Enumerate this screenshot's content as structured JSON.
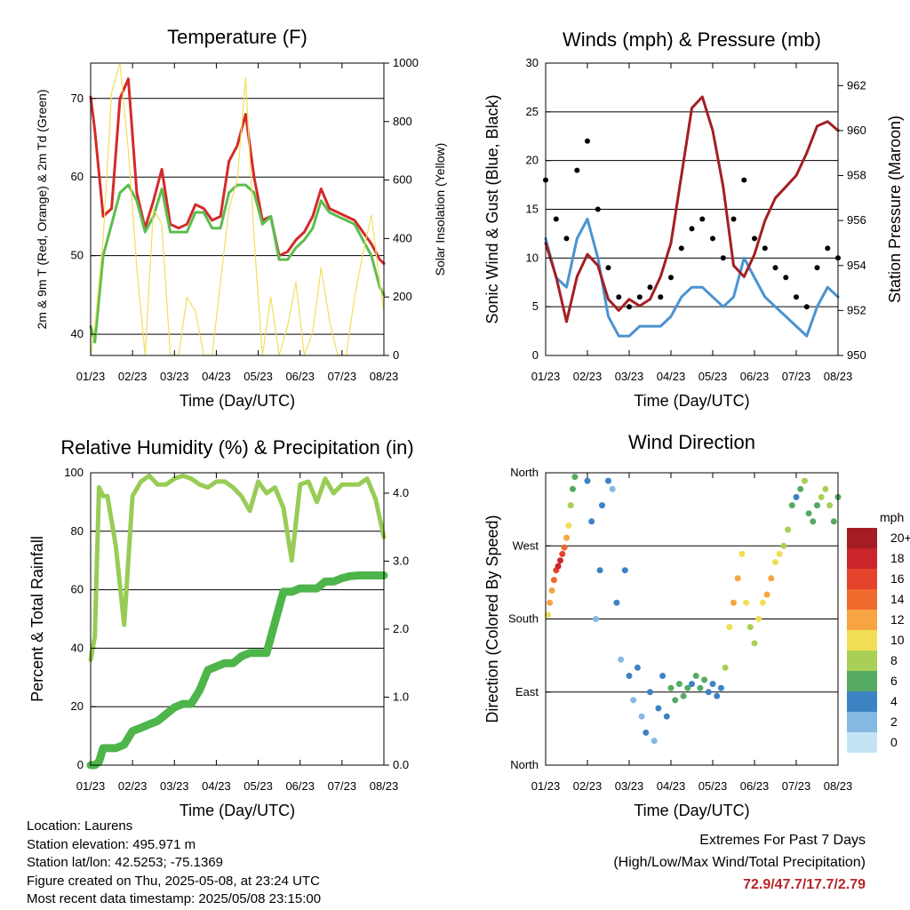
{
  "panels": [
    {
      "id": "temperature",
      "title": "Temperature (F)",
      "xlabel": "Time (Day/UTC)",
      "ylabel_left": "2m & 9m T (Red, Orange) & 2m Td (Green)",
      "ylabel_right": "Solar Insolation (Yellow)",
      "xticks": [
        "01/23",
        "02/23",
        "03/23",
        "04/23",
        "05/23",
        "06/23",
        "07/23",
        "08/23"
      ],
      "yticks_left": [
        "40",
        "50",
        "60",
        "70"
      ],
      "yticks_right": [
        "0",
        "200",
        "400",
        "600",
        "800",
        "1000"
      ]
    },
    {
      "id": "winds",
      "title": "Winds (mph) & Pressure (mb)",
      "xlabel": "Time (Day/UTC)",
      "ylabel_left": "Sonic Wind & Gust (Blue, Black)",
      "ylabel_right": "Station Pressure (Maroon)",
      "xticks": [
        "01/23",
        "02/23",
        "03/23",
        "04/23",
        "05/23",
        "06/23",
        "07/23",
        "08/23"
      ],
      "yticks_left": [
        "0",
        "5",
        "10",
        "15",
        "20",
        "25",
        "30"
      ],
      "yticks_right": [
        "950",
        "952",
        "954",
        "956",
        "958",
        "960",
        "962"
      ]
    },
    {
      "id": "humidity",
      "title": "Relative Humidity (%) & Precipitation (in)",
      "xlabel": "Time (Day/UTC)",
      "ylabel_left": "Percent & Total Rainfall",
      "ylabel_right": "",
      "xticks": [
        "01/23",
        "02/23",
        "03/23",
        "04/23",
        "05/23",
        "06/23",
        "07/23",
        "08/23"
      ],
      "yticks_left": [
        "0",
        "20",
        "40",
        "60",
        "80",
        "100"
      ],
      "yticks_right": [
        "0.0",
        "1.0",
        "2.0",
        "3.0",
        "4.0"
      ]
    },
    {
      "id": "direction",
      "title": "Wind Direction",
      "xlabel": "Time (Day/UTC)",
      "ylabel_left": "Direction (Colored By Speed)",
      "ylabel_right": "",
      "xticks": [
        "01/23",
        "02/23",
        "03/23",
        "04/23",
        "05/23",
        "06/23",
        "07/23",
        "08/23"
      ],
      "yticks_left": [
        "North",
        "East",
        "South",
        "West",
        "North"
      ],
      "yticks_right": []
    }
  ],
  "colorbar": {
    "unit": "mph",
    "labels": [
      "20+",
      "18",
      "16",
      "14",
      "12",
      "10",
      "8",
      "6",
      "4",
      "2",
      "0"
    ],
    "colors": [
      "#a51d22",
      "#c9252a",
      "#e4432c",
      "#f06a2d",
      "#f7a542",
      "#f2de55",
      "#a9cf56",
      "#55aa62",
      "#3c83c4",
      "#86b8e4",
      "#c4e4f6"
    ]
  },
  "chart_data": [
    {
      "type": "line",
      "title": "Temperature (F)",
      "xlabel": "Time (Day/UTC)",
      "ylabel": "2m & 9m T (Red, Orange) & 2m Td (Green)",
      "y2label": "Solar Insolation (Yellow)",
      "x_days": [
        0.0,
        0.1,
        0.3,
        0.5,
        0.7,
        0.9,
        1.1,
        1.3,
        1.5,
        1.7,
        1.9,
        2.1,
        2.3,
        2.5,
        2.7,
        2.9,
        3.1,
        3.3,
        3.5,
        3.7,
        3.9,
        4.1,
        4.3,
        4.5,
        4.7,
        4.9,
        5.1,
        5.3,
        5.5,
        5.7,
        5.9,
        6.1,
        6.3,
        6.5,
        6.7,
        6.9,
        7.0
      ],
      "ylim": [
        37.3,
        74.5
      ],
      "y2lim": [
        0,
        1000
      ],
      "series": [
        {
          "name": "2m T",
          "color": "#d42a2a",
          "values": [
            70.2,
            66,
            55,
            56,
            70,
            72.5,
            58,
            53.5,
            57,
            61,
            54,
            53.5,
            54,
            56.5,
            56,
            54.5,
            55,
            62,
            64,
            68,
            60,
            54.5,
            55,
            50,
            50.5,
            52,
            53,
            55,
            58.5,
            56,
            55.5,
            55,
            54.5,
            53,
            51.5,
            49.5,
            49
          ]
        },
        {
          "name": "2m Td",
          "color": "#5cbd4f",
          "values": [
            41,
            39,
            50,
            54,
            58,
            59,
            57,
            53,
            55,
            58.5,
            53,
            53,
            53,
            55.5,
            55.5,
            53.5,
            53.5,
            58,
            59,
            59,
            58,
            54,
            55,
            49.5,
            49.5,
            51,
            52,
            53.5,
            57,
            55.5,
            55,
            54.5,
            54,
            52,
            50,
            46,
            45
          ]
        },
        {
          "name": "Solar Insolation",
          "color": "#f2df5b",
          "axis": "right",
          "values": [
            0,
            100,
            400,
            900,
            1000,
            700,
            300,
            0,
            500,
            450,
            0,
            0,
            200,
            150,
            0,
            0,
            250,
            500,
            600,
            950,
            400,
            0,
            200,
            0,
            100,
            250,
            0,
            80,
            300,
            120,
            0,
            0,
            200,
            350,
            480,
            250,
            150
          ]
        }
      ]
    },
    {
      "type": "line",
      "title": "Winds (mph) & Pressure (mb)",
      "xlabel": "Time (Day/UTC)",
      "ylabel": "Sonic Wind & Gust (Blue, Black)",
      "y2label": "Station Pressure (Maroon)",
      "x_days": [
        0.0,
        0.25,
        0.5,
        0.75,
        1.0,
        1.25,
        1.5,
        1.75,
        2.0,
        2.25,
        2.5,
        2.75,
        3.0,
        3.25,
        3.5,
        3.75,
        4.0,
        4.25,
        4.5,
        4.75,
        5.0,
        5.25,
        5.5,
        5.75,
        6.0,
        6.25,
        6.5,
        6.75,
        7.0
      ],
      "ylim": [
        0,
        30
      ],
      "y2lim": [
        950,
        963
      ],
      "series": [
        {
          "name": "Gust",
          "color": "#000000",
          "values": [
            18,
            14,
            12,
            19,
            22,
            15,
            9,
            6,
            5,
            6,
            7,
            6,
            8,
            11,
            13,
            14,
            12,
            10,
            14,
            18,
            12,
            11,
            9,
            8,
            6,
            5,
            9,
            11,
            10
          ]
        },
        {
          "name": "Sonic Wind",
          "color": "#4a93d1",
          "values": [
            12,
            8,
            7,
            12,
            14,
            10,
            4,
            2,
            2,
            3,
            3,
            3,
            4,
            6,
            7,
            7,
            6,
            5,
            6,
            10,
            8,
            6,
            5,
            4,
            3,
            2,
            5,
            7,
            6
          ]
        },
        {
          "name": "Station Pressure",
          "color": "#a31f24",
          "axis": "right",
          "values": [
            955,
            953.5,
            951.5,
            953.5,
            954.5,
            954,
            952.5,
            952,
            952.5,
            952.2,
            952.5,
            953.5,
            955,
            958,
            961,
            961.5,
            960,
            957.5,
            954,
            953.5,
            954.5,
            956,
            957,
            957.5,
            958,
            959,
            960.2,
            960.4,
            960
          ]
        }
      ]
    },
    {
      "type": "line",
      "title": "Relative Humidity (%) & Precipitation (in)",
      "xlabel": "Time (Day/UTC)",
      "ylabel": "Percent & Total Rainfall",
      "x_days": [
        0.0,
        0.1,
        0.2,
        0.3,
        0.4,
        0.6,
        0.8,
        1.0,
        1.2,
        1.4,
        1.6,
        1.8,
        2.0,
        2.2,
        2.4,
        2.6,
        2.8,
        3.0,
        3.2,
        3.4,
        3.6,
        3.8,
        4.0,
        4.2,
        4.4,
        4.6,
        4.8,
        5.0,
        5.2,
        5.4,
        5.6,
        5.8,
        6.0,
        6.2,
        6.4,
        6.6,
        6.8,
        7.0
      ],
      "ylim": [
        0,
        100
      ],
      "y2lim": [
        0,
        4.3
      ],
      "series": [
        {
          "name": "Relative Humidity",
          "color": "#98cc55",
          "values": [
            36,
            44,
            95,
            92,
            92,
            75,
            48,
            92,
            97,
            99,
            96,
            96,
            98,
            99,
            98,
            96,
            95,
            97,
            97,
            95,
            92,
            87,
            97,
            93,
            95,
            88,
            70,
            96,
            97,
            90,
            98,
            93,
            96,
            96,
            96,
            98,
            91,
            78
          ]
        },
        {
          "name": "Total Rainfall",
          "color": "#4db54a",
          "axis": "right",
          "values": [
            0,
            0,
            0.05,
            0.25,
            0.25,
            0.25,
            0.3,
            0.5,
            0.55,
            0.6,
            0.65,
            0.75,
            0.85,
            0.9,
            0.9,
            1.1,
            1.4,
            1.45,
            1.5,
            1.5,
            1.6,
            1.65,
            1.65,
            1.65,
            2.1,
            2.55,
            2.55,
            2.6,
            2.6,
            2.6,
            2.7,
            2.7,
            2.75,
            2.78,
            2.79,
            2.79,
            2.79,
            2.79
          ]
        }
      ]
    },
    {
      "type": "scatter",
      "title": "Wind Direction",
      "xlabel": "Time (Day/UTC)",
      "ylabel": "Direction (Colored By Speed)",
      "ylim": [
        0,
        360
      ],
      "ytick_values": [
        0,
        90,
        180,
        270,
        360
      ],
      "series": [
        {
          "name": "Direction",
          "x": [
            0.05,
            0.1,
            0.15,
            0.2,
            0.25,
            0.3,
            0.35,
            0.4,
            0.45,
            0.5,
            0.55,
            0.6,
            0.65,
            0.7,
            1.0,
            1.1,
            1.2,
            1.3,
            1.35,
            1.5,
            1.6,
            1.7,
            1.8,
            1.9,
            2.0,
            2.1,
            2.2,
            2.3,
            2.4,
            2.5,
            2.6,
            2.7,
            2.8,
            2.9,
            3.0,
            3.1,
            3.2,
            3.3,
            3.4,
            3.5,
            3.6,
            3.7,
            3.8,
            3.9,
            4.0,
            4.1,
            4.2,
            4.3,
            4.4,
            4.5,
            4.6,
            4.7,
            4.8,
            4.9,
            5.0,
            5.1,
            5.2,
            5.3,
            5.4,
            5.5,
            5.6,
            5.7,
            5.8,
            5.9,
            6.0,
            6.1,
            6.2,
            6.3,
            6.4,
            6.5,
            6.6,
            6.7,
            6.8,
            6.9,
            7.0
          ],
          "y": [
            185,
            200,
            215,
            228,
            240,
            245,
            252,
            260,
            268,
            280,
            295,
            320,
            340,
            355,
            350,
            300,
            180,
            240,
            320,
            350,
            340,
            200,
            130,
            240,
            110,
            80,
            120,
            60,
            40,
            90,
            30,
            70,
            110,
            60,
            95,
            80,
            100,
            85,
            95,
            100,
            110,
            95,
            105,
            90,
            100,
            85,
            95,
            120,
            170,
            200,
            230,
            260,
            200,
            170,
            150,
            180,
            200,
            210,
            230,
            250,
            260,
            270,
            290,
            320,
            330,
            340,
            350,
            310,
            300,
            320,
            330,
            340,
            320,
            300,
            330
          ],
          "speed": [
            10,
            11,
            12,
            13,
            16,
            17,
            18,
            16,
            14,
            12,
            9,
            7,
            6,
            5,
            4,
            3,
            2,
            3,
            4,
            3,
            2,
            3,
            2,
            4,
            3,
            2,
            3,
            2,
            3,
            4,
            2,
            3,
            3,
            4,
            5,
            6,
            5,
            6,
            5,
            4,
            5,
            6,
            5,
            4,
            4,
            3,
            4,
            8,
            10,
            12,
            11,
            10,
            9,
            8,
            7,
            9,
            10,
            11,
            12,
            10,
            9,
            8,
            7,
            5,
            4,
            6,
            7,
            6,
            5,
            6,
            7,
            8,
            7,
            6,
            5
          ]
        }
      ]
    }
  ],
  "info": {
    "location": "Location: Laurens",
    "elevation": "Station elevation: 495.971 m",
    "latlon": "Station lat/lon: 42.5253; -75.1369",
    "created": "Figure created on Thu, 2025-05-08, at 23:24 UTC",
    "timestamp": "Most recent data timestamp: 2025/05/08 23:15:00"
  },
  "extremes": {
    "title": "Extremes For Past 7 Days",
    "subtitle": "(High/Low/Max Wind/Total Precipitation)",
    "values": "72.9/47.7/17.7/2.79"
  }
}
